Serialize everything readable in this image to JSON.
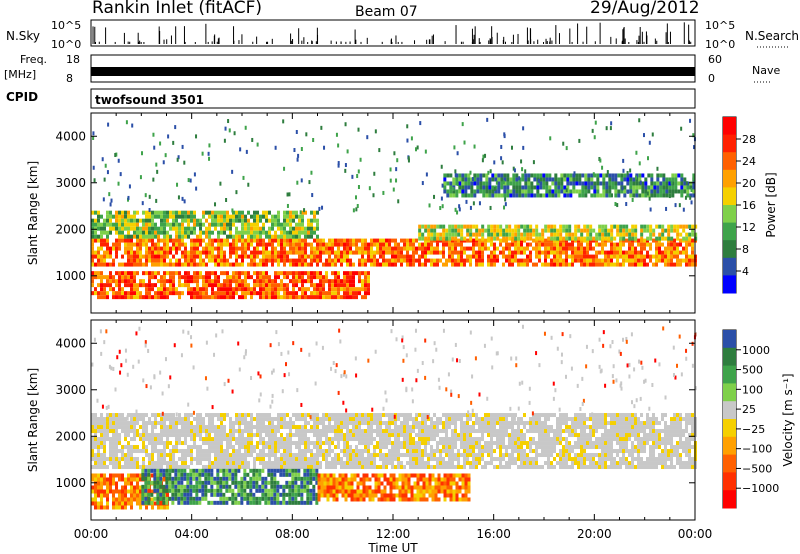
{
  "header": {
    "station": "Rankin Inlet (fitACF)",
    "beam": "Beam 07",
    "date": "29/Aug/2012"
  },
  "strips": {
    "nsky_label": "N.Sky",
    "nsearch_label": "N.Search",
    "nsky_ticks": [
      "10^5",
      "10^0"
    ],
    "nsearch_ticks": [
      "10^5",
      "10^0"
    ],
    "freq_label": "Freq.",
    "freq_unit": "[MHz]",
    "freq_ticks": [
      "18",
      "8"
    ],
    "nave_label": "Nave",
    "nave_ticks": [
      "60",
      "0"
    ],
    "cpid_label": "CPID",
    "cpid_value": "twofsound 3501"
  },
  "chart_data": [
    {
      "type": "heatmap",
      "panel": "power",
      "ylabel": "Slant Range [km]",
      "ylim": [
        200,
        4500
      ],
      "yticks": [
        "4000",
        "3000",
        "2000",
        "1000"
      ],
      "xlim_hours": [
        0,
        24
      ],
      "xticks": [
        "00:00",
        "04:00",
        "08:00",
        "12:00",
        "16:00",
        "20:00",
        "00:00"
      ],
      "xlabel": "Time UT",
      "colorbar": {
        "label": "Power [dB]",
        "ticks": [
          "28",
          "24",
          "20",
          "16",
          "12",
          "8",
          "4"
        ],
        "range": [
          0,
          32
        ],
        "colors": [
          "#0000ff",
          "#2b4fa8",
          "#2e7d3e",
          "#3ea34a",
          "#7fd04a",
          "#f5d000",
          "#ffa000",
          "#ff6000",
          "#ff2000",
          "#ff0000"
        ]
      },
      "bands": [
        {
          "t0": 0,
          "t1": 24,
          "r0": 1200,
          "r1": 1800,
          "value": 24
        },
        {
          "t0": 0,
          "t1": 11,
          "r0": 500,
          "r1": 1100,
          "value": 26
        },
        {
          "t0": 0,
          "t1": 9,
          "r0": 1800,
          "r1": 2400,
          "value": 14
        },
        {
          "t0": 13,
          "t1": 24,
          "r0": 1800,
          "r1": 2100,
          "value": 16
        },
        {
          "t0": 14,
          "t1": 24,
          "r0": 2700,
          "r1": 3200,
          "value": 8
        }
      ]
    },
    {
      "type": "heatmap",
      "panel": "velocity",
      "ylabel": "Slant Range [km]",
      "ylim": [
        200,
        4500
      ],
      "yticks": [
        "4000",
        "3000",
        "2000",
        "1000"
      ],
      "xlim_hours": [
        0,
        24
      ],
      "xticks": [
        "00:00",
        "04:00",
        "08:00",
        "12:00",
        "16:00",
        "20:00",
        "00:00"
      ],
      "xlabel": "Time UT",
      "colorbar": {
        "label": "Velocity [m s⁻¹]",
        "ticks": [
          "1000",
          "500",
          "100",
          "25",
          "−25",
          "−100",
          "−500",
          "−1000"
        ],
        "colors": [
          "#2b4fa8",
          "#2e7d3e",
          "#3ea34a",
          "#7fd04a",
          "#c8c8c8",
          "#f5d000",
          "#ffa000",
          "#ff6000",
          "#ff3000",
          "#ff0000"
        ]
      },
      "bands": [
        {
          "t0": 0,
          "t1": 24,
          "r0": 1300,
          "r1": 2500,
          "value": 0
        },
        {
          "t0": 0,
          "t1": 3,
          "r0": 500,
          "r1": 1200,
          "value": -300
        },
        {
          "t0": 2,
          "t1": 9,
          "r0": 600,
          "r1": 1300,
          "value": 300
        },
        {
          "t0": 9,
          "t1": 15,
          "r0": 600,
          "r1": 1200,
          "value": -300
        }
      ]
    }
  ]
}
